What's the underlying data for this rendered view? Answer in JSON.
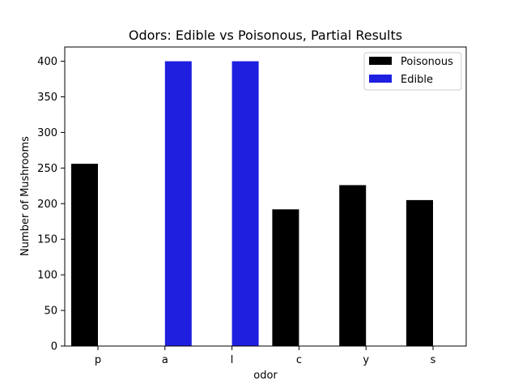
{
  "chart_data": {
    "type": "bar",
    "title": "Odors: Edible vs Poisonous, Partial Results",
    "xlabel": "odor",
    "ylabel": "Number of Mushrooms",
    "categories": [
      "p",
      "a",
      "l",
      "c",
      "y",
      "s"
    ],
    "series": [
      {
        "name": "Poisonous",
        "color": "#000000",
        "values": [
          256,
          0,
          0,
          192,
          226,
          205
        ]
      },
      {
        "name": "Edible",
        "color": "#1f1fe0",
        "values": [
          0,
          400,
          400,
          0,
          0,
          0
        ]
      }
    ],
    "ylim": [
      0,
      420
    ],
    "yticks": [
      0,
      50,
      100,
      150,
      200,
      250,
      300,
      350,
      400
    ],
    "grid": false,
    "legend_position": "top-right"
  }
}
